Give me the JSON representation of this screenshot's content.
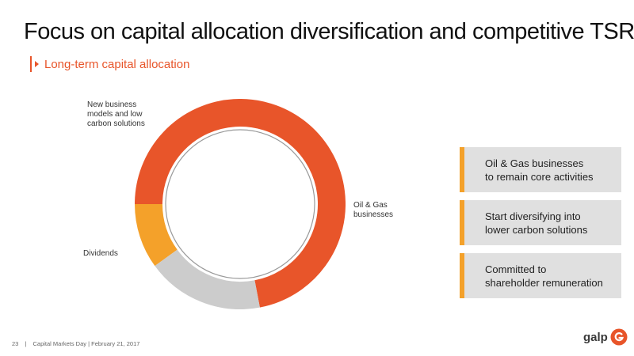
{
  "slide": {
    "title": "Focus on capital allocation diversification and competitive TSR",
    "subtitle": "Long-term capital allocation"
  },
  "chart_data": {
    "type": "pie",
    "style": "donut",
    "categories": [
      "New business models and low carbon solutions",
      "Oil & Gas businesses",
      "Dividends"
    ],
    "values": [
      10,
      72,
      18
    ],
    "colors": [
      "#f4a12a",
      "#e8552a",
      "#cccccc"
    ],
    "title": "",
    "labels": {
      "new_business": "New business\nmodels and low\ncarbon solutions",
      "oil_gas": "Oil & Gas\nbusinesses",
      "dividends": "Dividends"
    }
  },
  "callouts": [
    {
      "text": "Oil & Gas businesses\nto remain core activities"
    },
    {
      "text": "Start diversifying into\nlower carbon solutions"
    },
    {
      "text": "Committed to\nshareholder remuneration"
    }
  ],
  "footer": {
    "page_number": "23",
    "separator": "|",
    "event": "Capital Markets Day | February 21, 2017"
  },
  "logo": {
    "text": "galp",
    "icon": "galp-logo-icon"
  },
  "colors": {
    "accent": "#e8552a",
    "secondary": "#f4a12a",
    "neutral": "#cccccc",
    "box_bg": "#e0e0e0"
  }
}
